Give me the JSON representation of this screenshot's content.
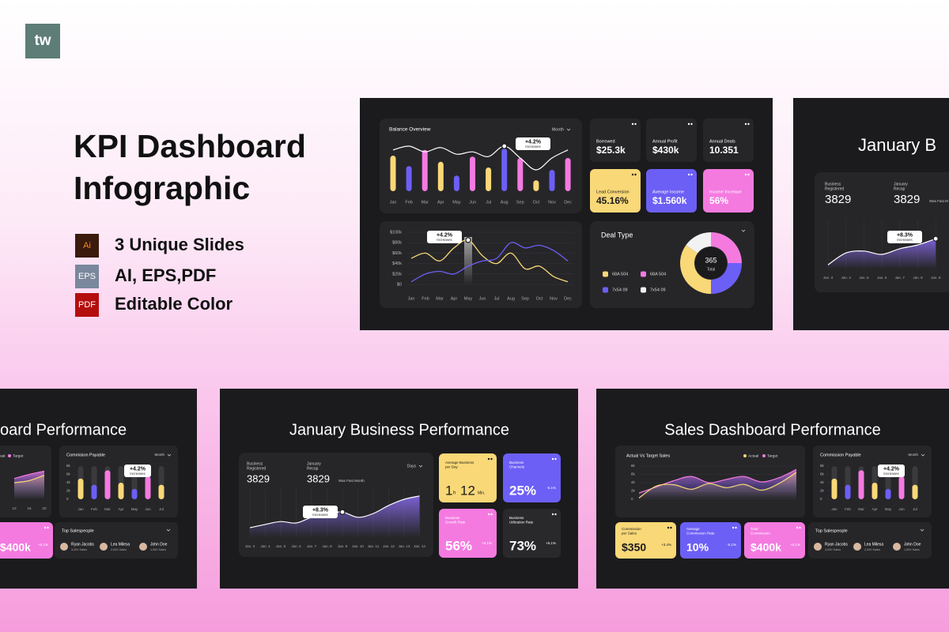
{
  "header": {
    "logo": "tw",
    "title": [
      "KPI Dashboard",
      "Infographic"
    ]
  },
  "features": [
    {
      "icon": "Ai",
      "text": "3 Unique Slides"
    },
    {
      "icon": "EPS",
      "text": "AI, EPS,PDF"
    },
    {
      "icon": "PDF",
      "text": "Editable Color"
    }
  ],
  "overview_slide": {
    "balance": {
      "title": "Balance Overview",
      "filter": "Month",
      "categories": [
        "Jan",
        "Feb",
        "Mar",
        "Apr",
        "May",
        "Jun",
        "Jul",
        "Aug",
        "Sep",
        "Oct",
        "Nov",
        "Dec"
      ],
      "bars": [
        75,
        53,
        87,
        62,
        33,
        73,
        50,
        90,
        70,
        23,
        45,
        70
      ],
      "bar_colors": [
        "#f9d877",
        "#6c5ff5",
        "#f47ae0"
      ],
      "line": [
        87,
        95,
        83,
        92,
        78,
        83,
        73,
        95,
        70,
        45,
        70,
        87
      ],
      "callout": {
        "value": "+4.2%",
        "label": "Increases"
      }
    },
    "kpis": [
      {
        "label": [
          "Borrowed"
        ],
        "value": "$25.3k",
        "color": "#262629",
        "text_color": "#ffffff"
      },
      {
        "label": [
          "Annual Profit"
        ],
        "value": "$430k",
        "color": "#262629",
        "text_color": "#ffffff"
      },
      {
        "label": [
          "Annual Deals"
        ],
        "value": "10.351",
        "color": "#262629",
        "text_color": "#ffffff"
      },
      {
        "label": [
          "Lead Conversion"
        ],
        "value": "45.16%",
        "color": "#f9d877",
        "text_color": "#1b1b1d"
      },
      {
        "label": [
          "Average Income"
        ],
        "value": "$1.560k",
        "color": "#6c5ff5",
        "text_color": "#ffffff"
      },
      {
        "label": [
          "Income Increase"
        ],
        "value": "56%",
        "color": "#f47ae0",
        "text_color": "#ffffff"
      }
    ],
    "trend": {
      "categories": [
        "Jan",
        "Feb",
        "Mar",
        "Apr",
        "May",
        "Jun",
        "Jul",
        "Aug",
        "Sep",
        "Oct",
        "Nov",
        "Dec"
      ],
      "ylim": [
        0,
        100
      ],
      "yticks": [
        {
          "value": 100,
          "label": "$100k"
        },
        {
          "value": 80,
          "label": "$80k"
        },
        {
          "value": 60,
          "label": "$60k"
        },
        {
          "value": 40,
          "label": "$40k"
        },
        {
          "value": 20,
          "label": "$20k"
        },
        {
          "value": 0,
          "label": "$0"
        }
      ],
      "series": [
        {
          "color": "#f9d877",
          "values": [
            50,
            60,
            45,
            70,
            85,
            55,
            40,
            60,
            30,
            35,
            15,
            5
          ]
        },
        {
          "color": "#6c5ff5",
          "values": [
            5,
            20,
            25,
            20,
            35,
            45,
            50,
            80,
            70,
            75,
            65,
            45
          ]
        }
      ],
      "callout": {
        "value": "+4.2%",
        "label": "Increases"
      }
    },
    "deal_type": {
      "title": "Deal Type",
      "total": "365",
      "total_label": "Total",
      "segments": [
        {
          "name": "68A 504",
          "color": "#f47ae0",
          "value": 25
        },
        {
          "name": "7x54 09",
          "color": "#6c5ff5",
          "value": 25
        },
        {
          "name": "68A 504",
          "color": "#f9d877",
          "value": 35
        },
        {
          "name": "7x54 09",
          "color": "#f2f2f2",
          "value": 15
        }
      ]
    }
  },
  "january_slide": {
    "title": "January B",
    "registered_label": [
      "Business",
      "Registered"
    ],
    "registered": "3829",
    "recap_label": [
      "January",
      "Recap"
    ],
    "recap": "3829",
    "recap_note": "Was Fast M",
    "categories": [
      "Jan. 3",
      "Jan. 4",
      "Jan. 5",
      "Jan. 6",
      "Jan. 7",
      "Jan. 8",
      "Jan. 9"
    ],
    "values": [
      8,
      33,
      37,
      30,
      42,
      50,
      63
    ],
    "callout": {
      "value": "+8.3%",
      "label": "Increases"
    }
  },
  "business_slide": {
    "title": "January Business Performance",
    "registered_label": [
      "Business",
      "Registered"
    ],
    "registered": "3829",
    "recap_label": [
      "January",
      "Recap"
    ],
    "recap": "3829",
    "recap_note": "Was Fast Month.",
    "filter": "Days",
    "categories": [
      "Jan. 3",
      "Jan. 4",
      "Jan. 5",
      "Jan. 6",
      "Jan. 7",
      "Jan. 8",
      "Jan. 9",
      "Jan. 10",
      "Jan. 11",
      "Jan. 12",
      "Jan. 13",
      "Jan. 14"
    ],
    "values": [
      20,
      27,
      33,
      30,
      42,
      50,
      53,
      42,
      50,
      67,
      80,
      87
    ],
    "callout": {
      "value": "+8.3%",
      "label": "Increases"
    },
    "cards": [
      {
        "label": [
          "Average Business",
          "per Day"
        ],
        "value": [
          "1",
          "h",
          "12",
          "Min."
        ],
        "color": "#f9d877",
        "text_color": "#1b1b1d"
      },
      {
        "label": [
          "Business",
          "Channels"
        ],
        "value": "25%",
        "change": "-5.1%",
        "color": "#6c5ff5",
        "text_color": "#ffffff"
      },
      {
        "label": [
          "Business",
          "Growth Rate"
        ],
        "value": "56%",
        "change": "+5.1%",
        "color": "#f47ae0",
        "text_color": "#ffffff"
      },
      {
        "label": [
          "Business",
          "Utilization Rate"
        ],
        "value": "73%",
        "change": "+5.1%",
        "color": "#29292c",
        "text_color": "#ffffff"
      }
    ]
  },
  "sales_slide": {
    "title": "Sales Dashboard Performance",
    "target_chart": {
      "title": "Actual Vs Target Sales",
      "ylim": [
        0,
        8
      ],
      "yticks": [
        {
          "value": 8,
          "label": "8k"
        },
        {
          "value": 6,
          "label": "6k"
        },
        {
          "value": 4,
          "label": "4k"
        },
        {
          "value": 2,
          "label": "2k"
        },
        0
      ],
      "series": [
        {
          "name": "Actual",
          "color": "#f9d877",
          "values": [
            0.3,
            3.2,
            3.5,
            2.4,
            3.8,
            2.8,
            3.6,
            2.2,
            3.8,
            6.5
          ]
        },
        {
          "name": "Target",
          "color": "#f47ae0",
          "values": [
            1.5,
            3,
            4.5,
            5.5,
            4,
            4.8,
            5.5,
            4.2,
            5.2,
            7.2
          ]
        }
      ]
    },
    "commission": {
      "title": "Commission Payable",
      "filter": "Month",
      "ylim": [
        0,
        8
      ],
      "yticks": [
        {
          "value": 8,
          "label": "8k"
        },
        {
          "value": 6,
          "label": "6k"
        },
        {
          "value": 4,
          "label": "4k"
        },
        {
          "value": 2,
          "label": "2k"
        },
        0
      ],
      "categories": [
        "Jan",
        "Feb",
        "Mar",
        "Apr",
        "May",
        "Jun",
        "Jul"
      ],
      "values": [
        5,
        3.5,
        7,
        4,
        2.5,
        5.5,
        3.5
      ],
      "colors": [
        "#f9d877",
        "#6c5ff5",
        "#f47ae0"
      ],
      "callout": {
        "value": "+4.2%",
        "label": "Increases"
      }
    },
    "cards": [
      {
        "label": [
          "Commission",
          "per Sales"
        ],
        "value": "$350",
        "change": "+3.4%",
        "color": "#f9d877",
        "text_color": "#1b1b1d"
      },
      {
        "label": [
          "Average",
          "Commission Rate"
        ],
        "value": "10%",
        "change": "-5.1%",
        "color": "#6c5ff5",
        "text_color": "#ffffff"
      },
      {
        "label": [
          "Total",
          "Commission"
        ],
        "value": "$400k",
        "change": "+5.1%",
        "color": "#f47ae0",
        "text_color": "#ffffff"
      }
    ],
    "salespeople": {
      "title": "Top Salespeople",
      "people": [
        {
          "name": "Ryan Jacobs",
          "sales": "3,000 Sales"
        },
        {
          "name": "Lea Milesa",
          "sales": "2,000 Sales"
        },
        {
          "name": "John Doe",
          "sales": "1,500 Sales"
        }
      ]
    }
  },
  "sales_slide_cropped": {
    "title": "oard Performance",
    "target_chart": {
      "ylim": [
        0,
        8
      ],
      "categories": [
        "10",
        "15",
        "20"
      ],
      "series": [
        {
          "name": "ual",
          "color": "#f9d877",
          "values": [
            4,
            4.5,
            5.8
          ]
        },
        {
          "name": "Target",
          "color": "#f47ae0",
          "values": [
            5,
            6,
            6.8
          ]
        }
      ]
    },
    "commission": {
      "title": "Commision Payable",
      "filter": "Month",
      "ylim": [
        0,
        8
      ],
      "yticks": [
        {
          "value": 8,
          "label": "8k"
        },
        {
          "value": 6,
          "label": "6k"
        },
        {
          "value": 4,
          "label": "4k"
        },
        {
          "value": 2,
          "label": "2k"
        },
        0
      ],
      "categories": [
        "Jan",
        "Feb",
        "Mar",
        "Apr",
        "May",
        "Jun",
        "Jul"
      ],
      "values": [
        5,
        3.5,
        7,
        4,
        2.5,
        5.5,
        3.5
      ],
      "colors": [
        "#f9d877",
        "#6c5ff5",
        "#f47ae0"
      ],
      "callout": {
        "value": "+4.2%",
        "label": "Increases"
      }
    },
    "cards": [
      {
        "value": "$400k",
        "change": "+5.1%",
        "color": "#f47ae0",
        "text_color": "#ffffff"
      }
    ],
    "salespeople": {
      "title": "Top Salespeople",
      "people": [
        {
          "name": "Ryan Jacobs",
          "sales": "3,000 Sales"
        },
        {
          "name": "Lea Milesa",
          "sales": "2,000 Sales"
        },
        {
          "name": "John Doe",
          "sales": "1,500 Sales"
        }
      ]
    }
  }
}
